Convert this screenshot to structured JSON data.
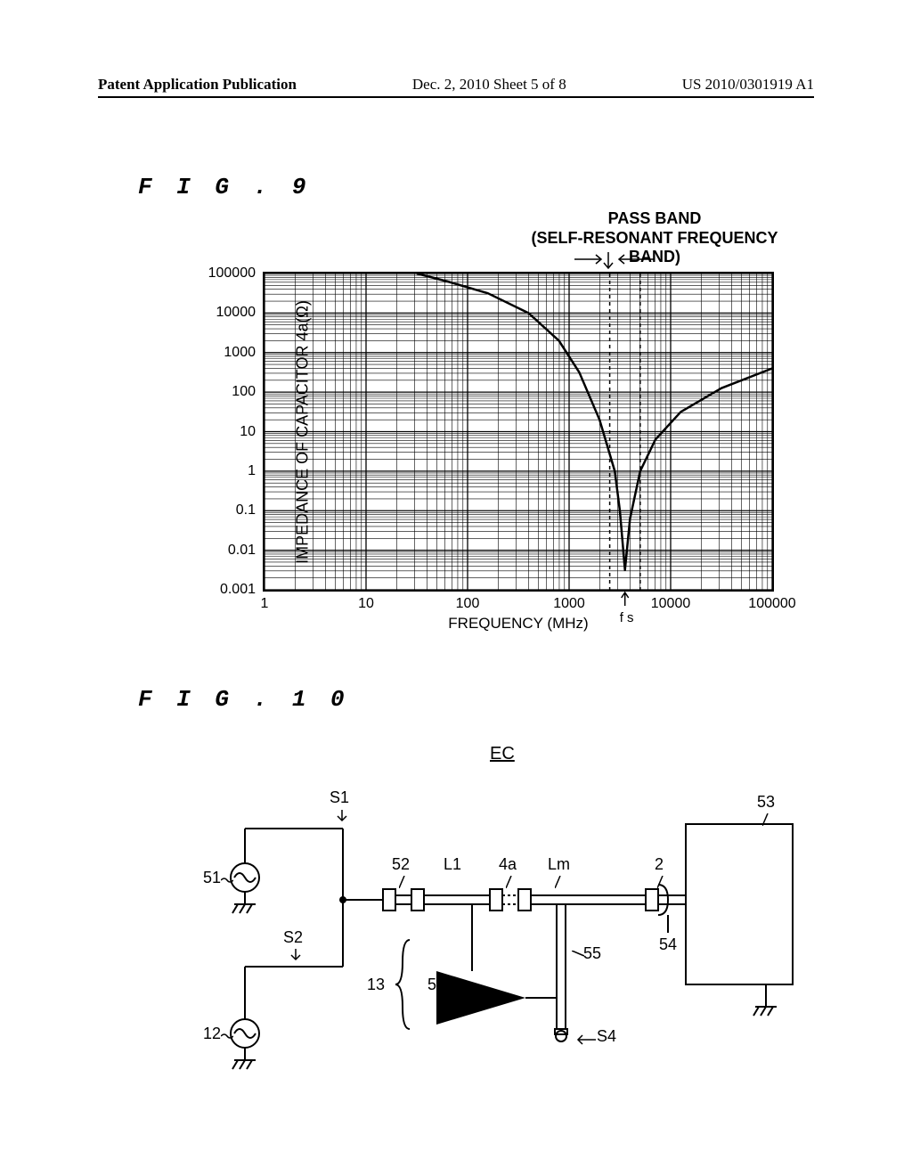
{
  "header": {
    "left": "Patent Application Publication",
    "center": "Dec. 2, 2010   Sheet 5 of 8",
    "right": "US 2010/0301919 A1"
  },
  "fig9": {
    "label": "F I G . 9",
    "passband_title_l1": "PASS BAND",
    "passband_title_l2": "(SELF-RESONANT FREQUENCY BAND)",
    "chart": {
      "type": "line-loglog",
      "ylabel": "IMPEDANCE OF CAPACITOR 4a(Ω)",
      "xlabel": "FREQUENCY  (MHz)",
      "xticks": [
        "1",
        "10",
        "100",
        "1000",
        "10000",
        "100000"
      ],
      "yticks": [
        "0.001",
        "0.01",
        "0.1",
        "1",
        "10",
        "100",
        "1000",
        "10000",
        "100000"
      ],
      "grid_color": "#000000",
      "curve_color": "#000000",
      "curve_width": 2.5,
      "fs_pos_decade": 3.55,
      "fs_label": "f s",
      "passband_left_decade": 3.4,
      "passband_right_decade": 3.7,
      "curve": [
        {
          "f": 1.5,
          "z": 8.0
        },
        {
          "f": 1.8,
          "z": 7.8
        },
        {
          "f": 2.2,
          "z": 7.5
        },
        {
          "f": 2.6,
          "z": 7.0
        },
        {
          "f": 2.9,
          "z": 6.3
        },
        {
          "f": 3.1,
          "z": 5.5
        },
        {
          "f": 3.3,
          "z": 4.3
        },
        {
          "f": 3.45,
          "z": 3.0
        },
        {
          "f": 3.5,
          "z": 2.0
        },
        {
          "f": 3.55,
          "z": 0.5
        },
        {
          "f": 3.6,
          "z": 1.8
        },
        {
          "f": 3.7,
          "z": 3.0
        },
        {
          "f": 3.85,
          "z": 3.8
        },
        {
          "f": 4.1,
          "z": 4.5
        },
        {
          "f": 4.5,
          "z": 5.1
        },
        {
          "f": 5.0,
          "z": 5.6
        }
      ]
    }
  },
  "fig10": {
    "label": "F I G . 1 0",
    "title": "EC",
    "labels": {
      "S1": "S1",
      "S2": "S2",
      "S4": "S4",
      "n51": "51",
      "n12": "12",
      "n52": "52",
      "L1": "L1",
      "n4a": "4a",
      "Lm": "Lm",
      "n2": "2",
      "n53": "53",
      "n54": "54",
      "n55": "55",
      "n56": "56",
      "n13": "13"
    }
  }
}
